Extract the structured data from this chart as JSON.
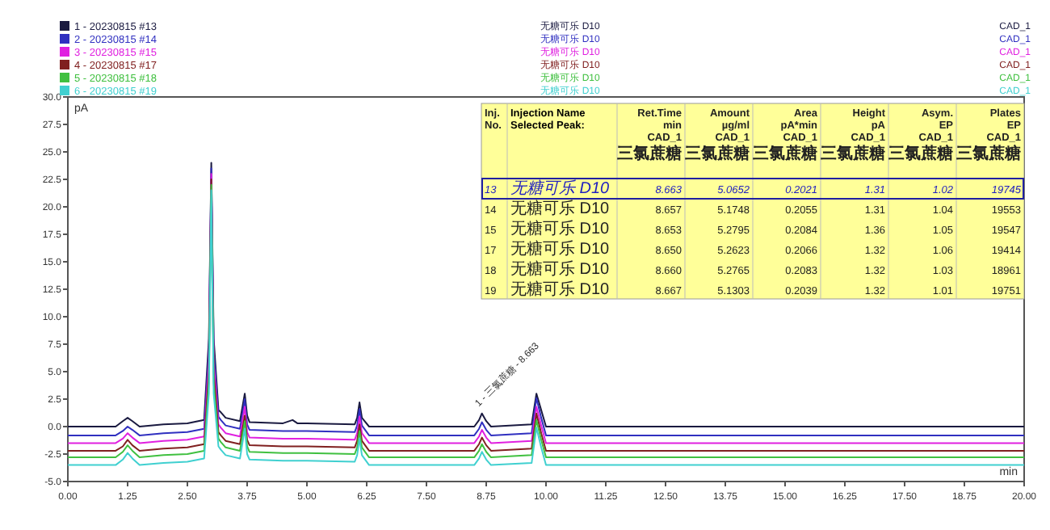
{
  "chart_data": {
    "type": "line",
    "xlabel": "min",
    "ylabel": "pA",
    "x": [
      0,
      1.0,
      1.15,
      1.25,
      1.35,
      1.5,
      2.0,
      2.5,
      2.85,
      2.95,
      3.0,
      3.05,
      3.15,
      3.2,
      3.3,
      3.6,
      3.7,
      3.75,
      3.8,
      4.5,
      4.7,
      4.8,
      5.0,
      6.0,
      6.05,
      6.1,
      6.15,
      6.3,
      8.5,
      8.6,
      8.66,
      8.75,
      8.85,
      9.7,
      9.8,
      9.9,
      10.0,
      12.0,
      20.0
    ],
    "series": [
      {
        "name": "1 - 20230815 #13",
        "color": "#1a1a40",
        "values": [
          0,
          0,
          0.5,
          0.8,
          0.5,
          0,
          0.2,
          0.3,
          0.6,
          8,
          24,
          8,
          1.5,
          1.3,
          0.8,
          0.5,
          3.0,
          1.0,
          0.4,
          0.3,
          0.6,
          0.3,
          0.3,
          0.2,
          0.8,
          2.2,
          0.8,
          0,
          0,
          0.6,
          1.2,
          0.5,
          0,
          0.2,
          3.0,
          1.5,
          0,
          0,
          0
        ]
      },
      {
        "name": "2 - 20230815 #14",
        "color": "#3030c0",
        "values": [
          -0.8,
          -0.8,
          -0.4,
          0,
          -0.3,
          -0.8,
          -0.6,
          -0.5,
          -0.2,
          7,
          23.5,
          7,
          0.9,
          0.6,
          0.1,
          -0.2,
          2.5,
          0.2,
          -0.3,
          -0.4,
          -0.4,
          -0.4,
          -0.4,
          -0.5,
          0.1,
          1.6,
          0.1,
          -0.8,
          -0.8,
          -0.2,
          0.4,
          -0.3,
          -0.8,
          -0.6,
          2.6,
          0.8,
          -0.8,
          -0.8,
          -0.8
        ]
      },
      {
        "name": "3 - 20230815 #15",
        "color": "#e020e0",
        "values": [
          -1.5,
          -1.5,
          -1.1,
          -0.6,
          -1.0,
          -1.5,
          -1.3,
          -1.2,
          -0.9,
          6,
          23,
          6,
          0.2,
          -0.1,
          -0.6,
          -0.9,
          1.8,
          -0.5,
          -1.0,
          -1.1,
          -1.1,
          -1.1,
          -1.1,
          -1.2,
          -0.6,
          0.9,
          -0.6,
          -1.5,
          -1.5,
          -0.9,
          -0.3,
          -1.0,
          -1.5,
          -1.3,
          1.8,
          0.1,
          -1.5,
          -1.5,
          -1.5
        ]
      },
      {
        "name": "4 - 20230815 #17",
        "color": "#802020",
        "values": [
          -2.2,
          -2.2,
          -1.8,
          -1.2,
          -1.7,
          -2.2,
          -2.0,
          -1.9,
          -1.6,
          5,
          22.5,
          5,
          -0.5,
          -0.8,
          -1.3,
          -1.6,
          1.0,
          -1.2,
          -1.7,
          -1.8,
          -1.8,
          -1.8,
          -1.8,
          -1.9,
          -1.3,
          0.2,
          -1.3,
          -2.2,
          -2.2,
          -1.6,
          -1.0,
          -1.7,
          -2.2,
          -2.0,
          1.2,
          -0.6,
          -2.2,
          -2.2,
          -2.2
        ]
      },
      {
        "name": "5 - 20230815 #18",
        "color": "#40c040",
        "values": [
          -2.8,
          -2.8,
          -2.3,
          -1.7,
          -2.2,
          -2.8,
          -2.6,
          -2.5,
          -2.2,
          4,
          22,
          4,
          -1.1,
          -1.4,
          -1.9,
          -2.2,
          0.5,
          -1.8,
          -2.3,
          -2.4,
          -2.4,
          -2.4,
          -2.4,
          -2.5,
          -1.9,
          -0.4,
          -1.9,
          -2.8,
          -2.8,
          -2.2,
          -1.6,
          -2.3,
          -2.8,
          -2.6,
          0.6,
          -1.2,
          -2.8,
          -2.8,
          -2.8
        ]
      },
      {
        "name": "6 - 20230815 #19",
        "color": "#40d0d0",
        "values": [
          -3.5,
          -3.5,
          -3.0,
          -2.4,
          -2.9,
          -3.5,
          -3.3,
          -3.2,
          -2.9,
          3,
          21.5,
          3,
          -1.8,
          -2.1,
          -2.6,
          -2.9,
          -0.2,
          -2.5,
          -3.0,
          -3.1,
          -3.1,
          -3.1,
          -3.1,
          -3.2,
          -2.6,
          -1.1,
          -2.6,
          -3.5,
          -3.5,
          -2.9,
          -2.3,
          -3.0,
          -3.5,
          -3.3,
          -0.1,
          -1.9,
          -3.5,
          -3.5,
          -3.5
        ]
      }
    ],
    "xlim": [
      0,
      20
    ],
    "xticks": [
      {
        "value": 0,
        "label": "0.00"
      },
      1.25,
      {
        "value": 2.5,
        "label": "2.50"
      },
      3.75,
      {
        "value": 5,
        "label": "5.00"
      },
      6.25,
      {
        "value": 7.5,
        "label": "7.50"
      },
      8.75,
      {
        "value": 10,
        "label": "10.00"
      },
      11.25,
      {
        "value": 12.5,
        "label": "12.50"
      },
      13.75,
      {
        "value": 15,
        "label": "15.00"
      },
      16.25,
      {
        "value": 17.5,
        "label": "17.50"
      },
      18.75,
      {
        "value": 20,
        "label": "20.00"
      }
    ],
    "ylim": [
      -5,
      30
    ],
    "yticks": [
      {
        "value": -5,
        "label": "-5.0"
      },
      -2.5,
      {
        "value": 0,
        "label": "0.0"
      },
      2.5,
      {
        "value": 5,
        "label": "5.0"
      },
      7.5,
      {
        "value": 10,
        "label": "10.0"
      },
      12.5,
      {
        "value": 15,
        "label": "15.0"
      },
      17.5,
      {
        "value": 20,
        "label": "20.0"
      },
      22.5,
      {
        "value": 25,
        "label": "25.0"
      },
      27.5,
      {
        "value": 30,
        "label": "30.0"
      }
    ],
    "legend": "top left",
    "grid": false,
    "line_style": "solid",
    "marker": "none",
    "annotations": [
      {
        "text": "1 - 三氯蔗糖 - 8.663",
        "x": 8.663,
        "y": 1.2
      },
      "Inj.\nNo.",
      "Injection Name\nSelected Peak:",
      "Ret.Time\nmin\nCAD_1\n三氯蔗糖",
      "Amount\nµg/ml\nCAD_1\n三氯蔗糖",
      "Area\npA*min\nCAD_1\n三氯蔗糖",
      "Height\npA\nCAD_1\n三氯蔗糖",
      "Asym.\nEP\nCAD_1\n三氯蔗糖",
      "Plates\nEP\nCAD_1\n三氯蔗糖",
      "13",
      "无糖可乐 D10",
      "8.663",
      "5.0652",
      "0.2021",
      "1.31",
      "1.02",
      "19745",
      "14",
      "无糖可乐 D10",
      "8.657",
      "5.1748",
      "0.2055",
      "1.31",
      "1.04",
      "19553",
      "15",
      "无糖可乐 D10",
      "8.653",
      "5.2795",
      "0.2084",
      "1.36",
      "1.05",
      "19547",
      "17",
      "无糖可乐 D10",
      "8.650",
      "5.2623",
      "0.2066",
      "1.32",
      "1.06",
      "19414",
      "18",
      "无糖可乐 D10",
      "8.660",
      "5.2765",
      "0.2083",
      "1.32",
      "1.03",
      "18961",
      "19",
      "无糖可乐 D10",
      "8.667",
      "5.1303",
      "0.2039",
      "1.32",
      "1.01",
      "19751",
      "无糖可乐 D10",
      "CAD_1",
      "无糖可乐 D10",
      "CAD_1",
      "无糖可乐 D10",
      "CAD_1",
      "无糖可乐 D10",
      "CAD_1",
      "无糖可乐 D10",
      "CAD_1",
      "无糖可乐 D10",
      "CAD_1"
    ]
  }
}
